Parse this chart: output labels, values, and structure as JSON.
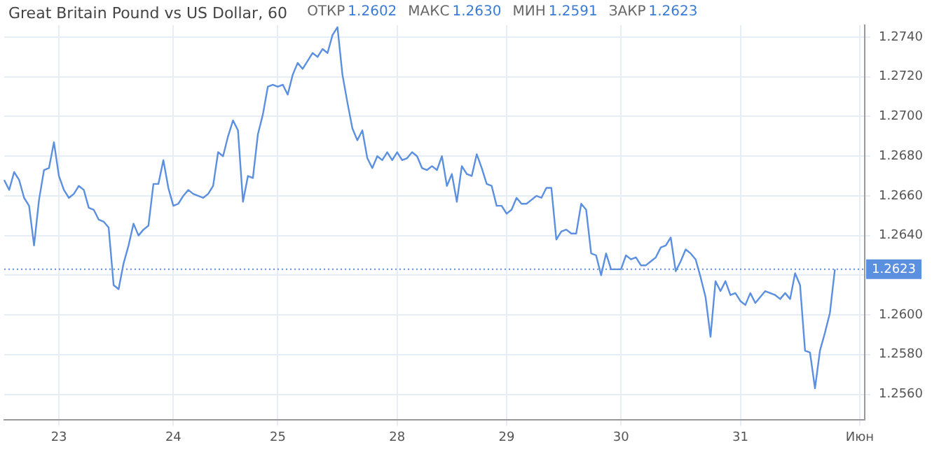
{
  "chart_data": {
    "type": "line",
    "title": "Great Britain Pound vs US Dollar, 60",
    "subtitle": "ОТКР 1.2602 МАКС 1.2630 МИН 1.2591 ЗАКР 1.2623",
    "categories": [
      null,
      null,
      null,
      null,
      null,
      null,
      null,
      null,
      null,
      null,
      null,
      "23",
      null,
      null,
      null,
      null,
      null,
      null,
      null,
      null,
      null,
      null,
      null,
      null,
      null,
      null,
      null,
      null,
      null,
      null,
      null,
      null,
      null,
      null,
      "24",
      null,
      null,
      null,
      null,
      null,
      null,
      null,
      null,
      null,
      null,
      null,
      null,
      null,
      null,
      null,
      null,
      null,
      null,
      null,
      null,
      "25",
      null,
      null,
      null,
      null,
      null,
      null,
      null,
      null,
      null,
      null,
      null,
      null,
      null,
      null,
      null,
      null,
      null,
      null,
      null,
      null,
      null,
      null,
      null,
      "28",
      null,
      null,
      null,
      null,
      null,
      null,
      null,
      null,
      null,
      null,
      null,
      null,
      null,
      null,
      null,
      null,
      null,
      null,
      null,
      null,
      null,
      "29",
      null,
      null,
      null,
      null,
      null,
      null,
      null,
      null,
      null,
      null,
      null,
      null,
      null,
      null,
      null,
      null,
      null,
      null,
      null,
      null,
      null,
      null,
      "30",
      null,
      null,
      null,
      null,
      null,
      null,
      null,
      null,
      null,
      null,
      null,
      null,
      null,
      null,
      null,
      null,
      null,
      null,
      null,
      null,
      null,
      null,
      null,
      "31",
      null,
      null,
      null,
      null,
      null,
      null,
      null,
      null,
      null,
      null,
      null,
      null,
      null,
      null,
      null,
      null,
      null,
      null,
      null,
      null,
      null,
      null,
      null,
      "Июн",
      null
    ],
    "series": [
      {
        "color": "#5b8fe0",
        "values": [
          1.2668,
          1.2663,
          1.2672,
          1.2668,
          1.2659,
          1.2655,
          1.2635,
          1.2658,
          1.2673,
          1.2674,
          1.2687,
          1.267,
          1.2663,
          1.2659,
          1.2661,
          1.2665,
          1.2663,
          1.2654,
          1.2653,
          1.2648,
          1.2647,
          1.2644,
          1.2615,
          1.2613,
          1.2626,
          1.2635,
          1.2646,
          1.264,
          1.2643,
          1.2645,
          1.2666,
          1.2666,
          1.2678,
          1.2664,
          1.2655,
          1.2656,
          1.266,
          1.2663,
          1.2661,
          1.266,
          1.2659,
          1.2661,
          1.2665,
          1.2682,
          1.268,
          1.269,
          1.2698,
          1.2693,
          1.2657,
          1.267,
          1.2669,
          1.2691,
          1.2701,
          1.2715,
          1.2716,
          1.2715,
          1.2716,
          1.2711,
          1.2721,
          1.2727,
          1.2724,
          1.2728,
          1.2732,
          1.273,
          1.2734,
          1.2732,
          1.2741,
          1.2745,
          1.2721,
          1.2707,
          1.2694,
          1.2688,
          1.2693,
          1.2679,
          1.2674,
          1.268,
          1.2678,
          1.2682,
          1.2678,
          1.2682,
          1.2678,
          1.2679,
          1.2682,
          1.268,
          1.2674,
          1.2673,
          1.2675,
          1.2673,
          1.268,
          1.2665,
          1.2671,
          1.2657,
          1.2675,
          1.2671,
          1.267,
          1.2681,
          1.2674,
          1.2666,
          1.2665,
          1.2655,
          1.2655,
          1.2651,
          1.2653,
          1.2659,
          1.2656,
          1.2656,
          1.2658,
          1.266,
          1.2659,
          1.2664,
          1.2664,
          1.2638,
          1.2642,
          1.2643,
          1.2641,
          1.2641,
          1.2656,
          1.2653,
          1.2631,
          1.263,
          1.262,
          1.2631,
          1.2623,
          1.2623,
          1.2623,
          1.263,
          1.2628,
          1.2629,
          1.2625,
          1.2625,
          1.2627,
          1.2629,
          1.2634,
          1.2635,
          1.2639,
          1.2622,
          1.2627,
          1.2633,
          1.2631,
          1.2628,
          1.2619,
          1.2609,
          1.2589,
          1.2617,
          1.2612,
          1.2617,
          1.261,
          1.2611,
          1.2607,
          1.2605,
          1.2611,
          1.2606,
          1.2609,
          1.2612,
          1.2611,
          1.261,
          1.2608,
          1.2611,
          1.2608,
          1.2621,
          1.2615,
          1.2582,
          1.2581,
          1.2563,
          1.2582,
          1.2591,
          1.2601,
          1.2623,
          null,
          null,
          null,
          null,
          null,
          null
        ]
      }
    ],
    "ylim": [
      1.2547,
      1.2746
    ],
    "yticks": [
      {
        "value": 1.256,
        "label": "1.2560"
      },
      {
        "value": 1.258,
        "label": "1.2580"
      },
      {
        "value": 1.26,
        "label": "1.2600"
      },
      {
        "value": 1.262,
        "label": null
      },
      {
        "value": 1.264,
        "label": "1.2640"
      },
      {
        "value": 1.266,
        "label": "1.2660"
      },
      {
        "value": 1.268,
        "label": "1.2680"
      },
      {
        "value": 1.27,
        "label": "1.2700"
      },
      {
        "value": 1.272,
        "label": "1.2720"
      },
      {
        "value": 1.274,
        "label": "1.2740"
      }
    ],
    "ref_lines": [
      {
        "axis": "y",
        "value": 1.2623,
        "label": "1.2623",
        "color": "#5b8fe0",
        "line_style": "dotted"
      }
    ],
    "grid": true,
    "legend": false,
    "marker": "none",
    "line_style": "solid"
  }
}
